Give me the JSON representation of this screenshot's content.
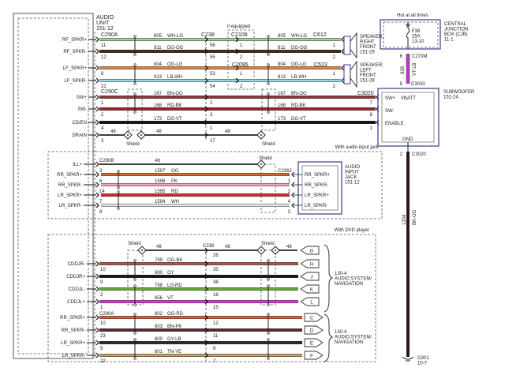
{
  "audio_unit": {
    "title": [
      "AUDIO",
      "UNIT",
      "151-12"
    ]
  },
  "section1": {
    "if_equipped": "if equipped",
    "connectors": {
      "left_a": "C290A",
      "left_c": "C290C",
      "c238": "C238",
      "c2108": "C2108",
      "c2095": "C2095",
      "c612": "C612",
      "c523": "C523",
      "c3020": "C3020"
    },
    "shield_label": "Shield",
    "wires": [
      {
        "label": "RF_SPKR+",
        "pin": "11",
        "circuit": "805",
        "color_code": "WH-LG",
        "hex": "#9fd49f",
        "c238_pin": "56",
        "mid_pin": "1",
        "end_pin": "1"
      },
      {
        "label": "RF_SPKR-",
        "pin": "12",
        "circuit": "811",
        "color_code": "DG-OG",
        "hex": "#4a2820",
        "c238_pin": "55",
        "mid_pin": "2",
        "end_pin": "2"
      },
      {
        "label": "LF_SPKR+",
        "pin": "8",
        "circuit": "804",
        "color_code": "OG-LG",
        "hex": "#d4874a",
        "c238_pin": "53",
        "mid_pin": "1",
        "end_pin": "1"
      },
      {
        "label": "LF_SPKR-",
        "pin": "21",
        "circuit": "813",
        "color_code": "LB-WH",
        "hex": "#9ad6e0",
        "c238_pin": "54",
        "mid_pin": "2",
        "end_pin": "2"
      },
      {
        "label": "SW+",
        "pin": "1",
        "circuit": "167",
        "color_code": "BN-OG",
        "hex": "#8a3a38",
        "c238_pin": "2",
        "end_pin": "7"
      },
      {
        "label": "SW-",
        "pin": "2",
        "circuit": "168",
        "color_code": "RD-BK",
        "hex": "#9a2428",
        "c238_pin": "3",
        "end_pin": "8"
      },
      {
        "label": "CD/EN",
        "pin": "4",
        "circuit": "173",
        "color_code": "DG-VT",
        "hex": "#111111",
        "c238_pin": "1",
        "end_pin": "1"
      },
      {
        "label": "DRAIN",
        "pin": "3",
        "circuit": "48",
        "c238_pin": "17"
      }
    ],
    "speakers": [
      {
        "name": [
          "SPEAKER,",
          "RIGHT",
          "FRONT",
          "151-29"
        ]
      },
      {
        "name": [
          "SPEAKER,",
          "LEFT",
          "FRONT",
          "151-28"
        ]
      }
    ]
  },
  "power": {
    "hot_label": "Hot at all times",
    "cjb": [
      "CENTRAL",
      "JUNCTION",
      "BOX (CJB)",
      "11-1"
    ],
    "fuse": [
      "F38",
      "25A",
      "13-10"
    ],
    "pin_top": "6",
    "conn_top": "C270M",
    "circuit": "828",
    "color_code": "VT-LB",
    "hex": "#b040c0",
    "pin_bottom": "5",
    "conn_bottom": "C3020"
  },
  "subwoofer": {
    "name": [
      "SUBWOOFER",
      "151-24"
    ],
    "pins": [
      "SW+",
      "VBATT",
      "SW-",
      "ENABLE",
      "GND"
    ]
  },
  "ground": {
    "pin": "2",
    "conn": "C3020",
    "circuit": "1204",
    "color_code": "BK-OG",
    "hex": "#2a1410",
    "ground_id": [
      "G301",
      "10-7"
    ]
  },
  "section2": {
    "title": "With audio input jack",
    "connector": "C290B",
    "right_connector": "C2362",
    "shield_label": "Shield",
    "jack_name": [
      "AUDIO",
      "INPUT",
      "JACK",
      "151-12"
    ],
    "wires": [
      {
        "label": "ILL+",
        "pin": "",
        "circuit": "48",
        "color_code": "",
        "hex": "#111111",
        "jack_pin": "",
        "end_pin": ""
      },
      {
        "label": "RR_SPKR+",
        "pin": "3",
        "circuit": "1597",
        "color_code": "OG",
        "hex": "#d8672a",
        "jack_pin": "RR_SPKR+",
        "end_pin": ""
      },
      {
        "label": "RR_SPKR-",
        "pin": "6",
        "circuit": "1596",
        "color_code": "PK",
        "hex": "#f0a0b8",
        "jack_pin": "RR_SPKR-",
        "end_pin": "1"
      },
      {
        "label": "LR_SPKR+",
        "pin": "14",
        "circuit": "1595",
        "color_code": "RD",
        "hex": "#d42a2a",
        "jack_pin": "LR_SPKR+",
        "end_pin": "2"
      },
      {
        "label": "LR_SPKR-",
        "pin": "7",
        "circuit": "1594",
        "color_code": "WH",
        "hex": "#e8e8e8",
        "jack_pin": "LR_SPKR-",
        "end_pin": "4"
      }
    ],
    "extra_pins": [
      "8",
      "3"
    ]
  },
  "section3": {
    "title": "With DVD player",
    "connector": "C290A",
    "c238": "C238",
    "shield_label": "Shield",
    "drain": {
      "circuit": "48",
      "c238_pin": "26",
      "end": "G"
    },
    "wires": [
      {
        "label": "CDDJR-",
        "pin": "10",
        "circuit": "799",
        "color_code": "OG-BK",
        "hex": "#a85a4a",
        "c238_pin": "35",
        "end": "H"
      },
      {
        "label": "CDDJR+",
        "pin": "9",
        "circuit": "690",
        "color_code": "GY",
        "hex": "#141414",
        "c238_pin": "36",
        "end": "J"
      },
      {
        "label": "CDDJL-",
        "pin": "2",
        "circuit": "798",
        "color_code": "LG-RD",
        "hex": "#6aaa3a",
        "c238_pin": "16",
        "end": "K"
      },
      {
        "label": "CDDJL+",
        "pin": "1",
        "circuit": "856",
        "color_code": "VT",
        "hex": "#d838d8",
        "c238_pin": "15",
        "end": "L"
      },
      {
        "label": "RR_SPKR+",
        "pin": "10",
        "circuit": "802",
        "color_code": "OG-RD",
        "hex": "#e2583a",
        "c238_pin": "12",
        "end": "C"
      },
      {
        "label": "RR_SPKR-",
        "pin": "23",
        "circuit": "803",
        "color_code": "BN-PK",
        "hex": "#5a2a28",
        "c238_pin": "11",
        "end": "D"
      },
      {
        "label": "LR_SPKR+",
        "pin": "9",
        "circuit": "800",
        "color_code": "GY-LB",
        "hex": "#2a2a2a",
        "c238_pin": "8",
        "end": "E"
      },
      {
        "label": "LR_SPKR-",
        "pin": "22",
        "circuit": "801",
        "color_code": "TN-YE",
        "hex": "#c8a062",
        "c238_pin": "7",
        "end": "F"
      }
    ],
    "destinations": [
      [
        "130-4",
        "AUDIO SYSTEM/",
        "NAVIGATION"
      ],
      [
        "130-4",
        "AUDIO SYSTEM/",
        "NAVIGATION"
      ]
    ]
  }
}
